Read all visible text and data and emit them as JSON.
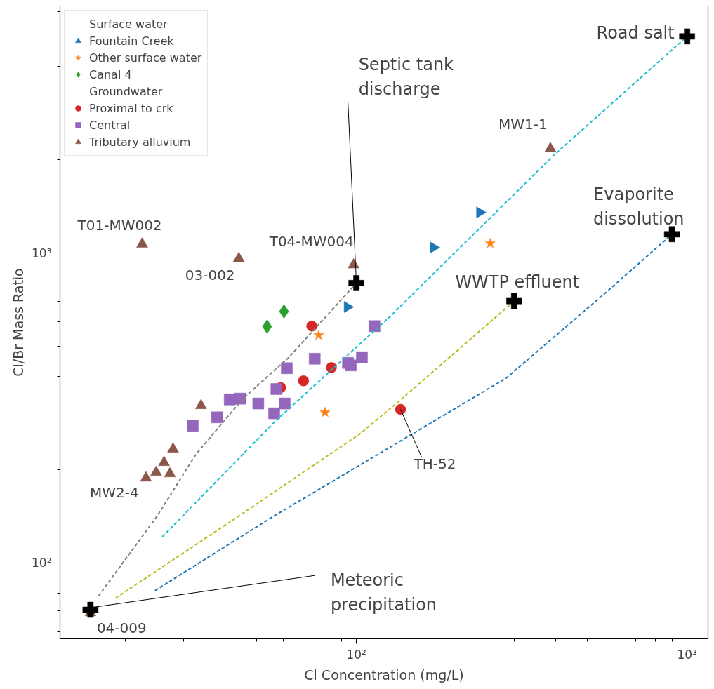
{
  "chart_data": {
    "type": "scatter",
    "xlabel": "Cl Concentration (mg/L)",
    "ylabel": "Cl/Br Mass Ratio",
    "log": "xy",
    "grid": false,
    "legend": "top left",
    "xlim": [
      12.7,
      1157
    ],
    "ylim": [
      56.9,
      6270
    ],
    "xticks": [
      {
        "value": 100,
        "label": "10²"
      },
      {
        "value": 1000,
        "label": "10³"
      }
    ],
    "yticks": [
      {
        "value": 100,
        "label": "10²"
      },
      {
        "value": 1000,
        "label": "10³"
      }
    ],
    "series": [
      {
        "name": "Surface water",
        "marker": "none"
      },
      {
        "name": "Fountain Creek",
        "marker": "triangle-right",
        "color": "#1f77b4",
        "x": [
          93.9,
          171,
          236
        ],
        "values": [
          670,
          1042,
          1353
        ]
      },
      {
        "name": "Other surface water",
        "marker": "star",
        "color": "#ff7f0e",
        "x": [
          76.9,
          80.4,
          254
        ],
        "values": [
          543,
          306,
          1074
        ]
      },
      {
        "name": "Canal 4",
        "marker": "diamond",
        "color": "#2ca02c",
        "x": [
          53.7,
          60.4
        ],
        "values": [
          579,
          648
        ]
      },
      {
        "name": "Groundwater",
        "marker": "none"
      },
      {
        "name": "Proximal to crk",
        "marker": "circle",
        "color": "#d62728",
        "x": [
          73.3,
          84.0,
          69.2,
          59.0,
          136
        ],
        "values": [
          581,
          427,
          387,
          368,
          313
        ]
      },
      {
        "name": "Central",
        "marker": "square",
        "color": "#9467bd",
        "x": [
          113.4,
          74.8,
          61.6,
          94.3,
          96.2,
          103.9,
          57.3,
          41.4,
          44.5,
          50.5,
          60.7,
          56.4,
          37.9,
          32.0
        ],
        "values": [
          581,
          456,
          425,
          442,
          434,
          461,
          364,
          337,
          339,
          327,
          327,
          304,
          295,
          277
        ]
      },
      {
        "name": "Tributary alluvium",
        "marker": "triangle",
        "color": "#8c564b",
        "x": [
          22.5,
          44.1,
          98.1,
          386,
          33.9,
          27.9,
          26.2,
          24.8,
          27.3,
          23.1,
          15.7
        ],
        "values": [
          1069,
          960,
          916,
          2174,
          322,
          233,
          211,
          196,
          194,
          188,
          69.1
        ]
      },
      {
        "type": "line",
        "line_style": "dashed",
        "marker": "none",
        "color": "#7f7f7f",
        "x": [
          16.6,
          24.9,
          32.8,
          45.4,
          62.5,
          100
        ],
        "values": [
          78.2,
          141,
          225,
          339,
          461,
          800
        ]
      },
      {
        "type": "line",
        "line_style": "dashed",
        "marker": "none",
        "color": "#17becf",
        "x": [
          25.9,
          56.7,
          127,
          396,
          1000
        ],
        "values": [
          121.5,
          286,
          627,
          2072,
          5000
        ]
      },
      {
        "type": "line",
        "line_style": "dashed",
        "marker": "none",
        "color": "#bcbd22",
        "x": [
          18.7,
          43.2,
          102,
          133,
          300
        ],
        "values": [
          77,
          139.6,
          260,
          329,
          700
        ]
      },
      {
        "type": "line",
        "line_style": "dashed",
        "marker": "none",
        "color": "#1f77b4",
        "x": [
          24.6,
          55.9,
          127,
          284,
          578,
          900
        ],
        "values": [
          81.4,
          141,
          237,
          395,
          758,
          1150
        ]
      },
      {
        "marker": "cross",
        "color": "#000000",
        "x": [
          15.7,
          100,
          300,
          900,
          1000
        ],
        "values": [
          70.6,
          800,
          700,
          1150,
          5000
        ]
      }
    ],
    "annotations": [
      {
        "text": "Road salt",
        "x": 1000,
        "y": 5000
      },
      {
        "text": "Septic tank\ndischarge",
        "x": 100,
        "y": 800
      },
      {
        "text": "MW1-1",
        "x": 386,
        "y": 2174
      },
      {
        "text": "Evaporite\ndissolution",
        "x": 900,
        "y": 1150
      },
      {
        "text": "WWTP effluent",
        "x": 300,
        "y": 700
      },
      {
        "text": "T01-MW002",
        "x": 22.5,
        "y": 1069
      },
      {
        "text": "T04-MW004",
        "x": 98.1,
        "y": 916
      },
      {
        "text": "03-002",
        "x": 44.1,
        "y": 960
      },
      {
        "text": "MW2-4",
        "x": 23.1,
        "y": 188
      },
      {
        "text": "04-009",
        "x": 15.7,
        "y": 69.1
      },
      {
        "text": "TH-52",
        "x": 136,
        "y": 313
      },
      {
        "text": "Meteoric\nprecipitation",
        "x": 15.7,
        "y": 70.6
      }
    ]
  }
}
